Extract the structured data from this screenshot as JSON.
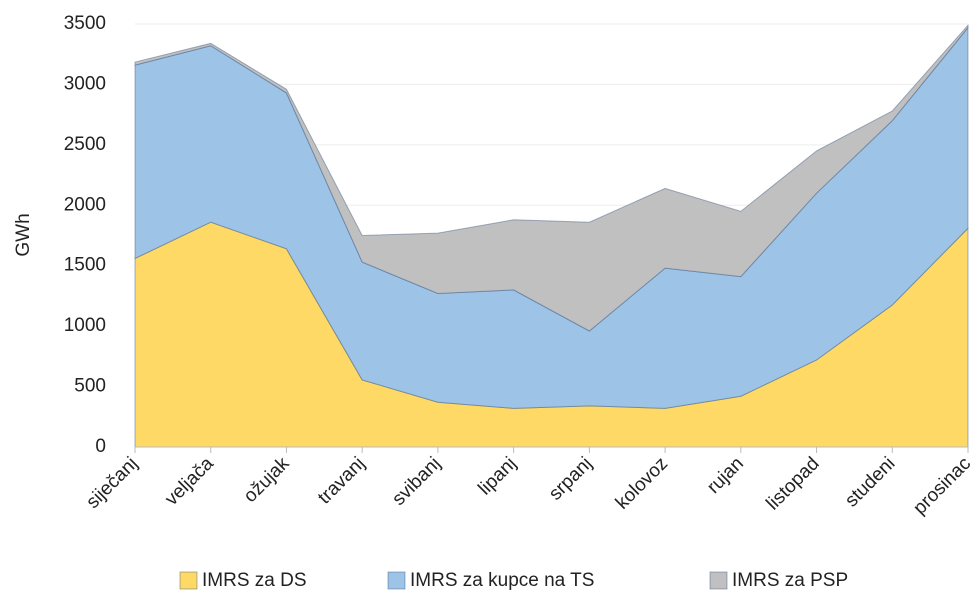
{
  "chart_data": {
    "type": "stacked_area",
    "y_label": "GWh",
    "categories": [
      "siječanj",
      "veljača",
      "ožujak",
      "travanj",
      "svibanj",
      "lipanj",
      "srpanj",
      "kolovoz",
      "rujan",
      "listopad",
      "studeni",
      "prosinac"
    ],
    "series": [
      {
        "name": "IMRS za DS",
        "color": "#ffd966",
        "values": [
          1560,
          1860,
          1640,
          555,
          370,
          320,
          340,
          320,
          420,
          720,
          1175,
          1810
        ]
      },
      {
        "name": "IMRS za kupce na TS",
        "color": "#9dc3e6",
        "values": [
          1600,
          1460,
          1290,
          975,
          900,
          980,
          620,
          1160,
          990,
          1380,
          1525,
          1660
        ]
      },
      {
        "name": "IMRS za PSP",
        "color": "#c0c0c0",
        "values": [
          25,
          20,
          30,
          220,
          500,
          580,
          900,
          660,
          540,
          350,
          80,
          20
        ]
      }
    ],
    "ylim": [
      0,
      3500
    ],
    "yticks": [
      0,
      500,
      1000,
      1500,
      2000,
      2500,
      3000,
      3500
    ],
    "grid": true,
    "legend": "bottom"
  }
}
